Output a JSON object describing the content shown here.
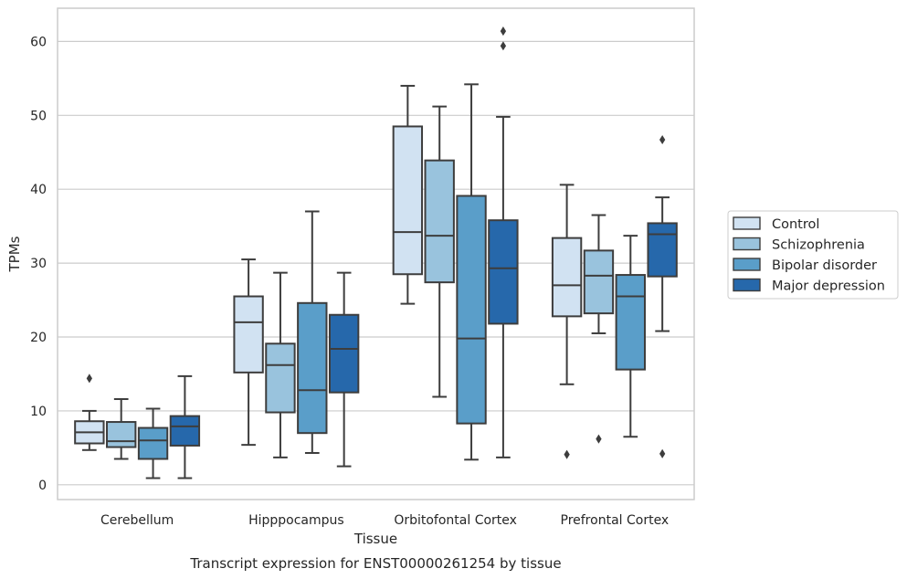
{
  "chart_data": {
    "type": "box",
    "title": "",
    "caption": "Transcript expression for ENST00000261254 by tissue",
    "xlabel": "Tissue",
    "ylabel": "TPMs",
    "ylim": [
      -2,
      64.5
    ],
    "yticks": [
      0,
      10,
      20,
      30,
      40,
      50,
      60
    ],
    "grid": "horizontal",
    "legend_position": "right",
    "categories": [
      "Cerebellum",
      "Hipppocampus",
      "Orbitofontal Cortex",
      "Prefrontal Cortex"
    ],
    "series": [
      {
        "name": "Control",
        "color": "#d1e2f2",
        "boxes": [
          {
            "whislo": 4.7,
            "q1": 5.6,
            "med": 7.1,
            "q3": 8.6,
            "whishi": 10.0,
            "fliers": [
              14.4
            ]
          },
          {
            "whislo": 5.4,
            "q1": 15.2,
            "med": 22.0,
            "q3": 25.5,
            "whishi": 30.5,
            "fliers": []
          },
          {
            "whislo": 24.5,
            "q1": 28.5,
            "med": 34.2,
            "q3": 48.5,
            "whishi": 54.0,
            "fliers": []
          },
          {
            "whislo": 13.6,
            "q1": 22.8,
            "med": 27.0,
            "q3": 33.4,
            "whishi": 40.6,
            "fliers": [
              4.1
            ]
          }
        ]
      },
      {
        "name": "Schizophrenia",
        "color": "#99c3dd",
        "boxes": [
          {
            "whislo": 3.5,
            "q1": 5.1,
            "med": 5.9,
            "q3": 8.5,
            "whishi": 11.6,
            "fliers": []
          },
          {
            "whislo": 3.7,
            "q1": 9.8,
            "med": 16.2,
            "q3": 19.1,
            "whishi": 28.7,
            "fliers": []
          },
          {
            "whislo": 11.9,
            "q1": 27.4,
            "med": 33.7,
            "q3": 43.9,
            "whishi": 51.2,
            "fliers": []
          },
          {
            "whislo": 20.5,
            "q1": 23.2,
            "med": 28.3,
            "q3": 31.7,
            "whishi": 36.5,
            "fliers": [
              6.2
            ]
          }
        ]
      },
      {
        "name": "Bipolar disorder",
        "color": "#5a9ec9",
        "boxes": [
          {
            "whislo": 0.9,
            "q1": 3.5,
            "med": 6.0,
            "q3": 7.7,
            "whishi": 10.3,
            "fliers": []
          },
          {
            "whislo": 4.3,
            "q1": 7.0,
            "med": 12.8,
            "q3": 24.6,
            "whishi": 37.0,
            "fliers": []
          },
          {
            "whislo": 3.4,
            "q1": 8.3,
            "med": 19.8,
            "q3": 39.1,
            "whishi": 54.2,
            "fliers": []
          },
          {
            "whislo": 6.5,
            "q1": 15.6,
            "med": 25.5,
            "q3": 28.4,
            "whishi": 33.7,
            "fliers": []
          }
        ]
      },
      {
        "name": "Major depression",
        "color": "#2668ab",
        "boxes": [
          {
            "whislo": 0.9,
            "q1": 5.3,
            "med": 7.9,
            "q3": 9.3,
            "whishi": 14.7,
            "fliers": []
          },
          {
            "whislo": 2.5,
            "q1": 12.5,
            "med": 18.4,
            "q3": 23.0,
            "whishi": 28.7,
            "fliers": []
          },
          {
            "whislo": 3.7,
            "q1": 21.8,
            "med": 29.3,
            "q3": 35.8,
            "whishi": 49.8,
            "fliers": [
              59.4,
              61.4
            ]
          },
          {
            "whislo": 20.8,
            "q1": 28.2,
            "med": 33.9,
            "q3": 35.4,
            "whishi": 38.9,
            "fliers": [
              4.2,
              46.7
            ]
          }
        ]
      }
    ]
  }
}
